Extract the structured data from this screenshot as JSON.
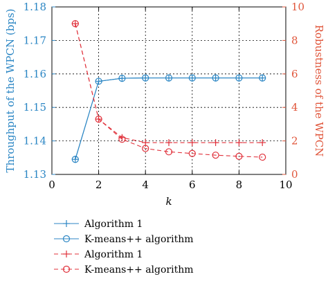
{
  "chart_data": {
    "type": "line",
    "xlabel": "k",
    "xlim": [
      0,
      10
    ],
    "xticks": [
      0,
      2,
      4,
      6,
      8,
      10
    ],
    "grid": true,
    "left_axis": {
      "ylabel": "Throughput of the WPCN (bps)",
      "ylim": [
        1.13,
        1.18
      ],
      "yticks": [
        1.13,
        1.14,
        1.15,
        1.16,
        1.17,
        1.18
      ],
      "color": "#2b86c4"
    },
    "right_axis": {
      "ylabel": "Robustness of the WPCN",
      "ylim": [
        0,
        10
      ],
      "yticks": [
        0,
        2,
        4,
        6,
        8,
        10
      ],
      "color": "#e0553a"
    },
    "x": [
      1,
      2,
      3,
      4,
      5,
      6,
      7,
      8,
      9
    ],
    "series": [
      {
        "name": "Algorithm 1",
        "axis": "left",
        "marker": "plus",
        "line": "solid",
        "color": "#2b86c4",
        "values": [
          1.1345,
          1.1578,
          1.1587,
          1.1588,
          1.1588,
          1.1588,
          1.1588,
          1.1588,
          1.1588
        ]
      },
      {
        "name": "K-means++ algorithm",
        "axis": "left",
        "marker": "circle",
        "line": "solid",
        "color": "#2b86c4",
        "values": [
          1.1345,
          1.1578,
          1.1587,
          1.1588,
          1.1588,
          1.1588,
          1.1588,
          1.1588,
          1.1588
        ]
      },
      {
        "name": "Algorithm 1",
        "axis": "right",
        "marker": "plus",
        "line": "dashed",
        "color": "#e0303a",
        "values": [
          9.0,
          3.3,
          2.2,
          1.9,
          1.9,
          1.9,
          1.9,
          1.9,
          1.9
        ]
      },
      {
        "name": "K-means++ algorithm",
        "axis": "right",
        "marker": "circle",
        "line": "dashed",
        "color": "#e0303a",
        "values": [
          9.0,
          3.3,
          2.1,
          1.55,
          1.35,
          1.25,
          1.15,
          1.08,
          1.03
        ]
      }
    ],
    "legend_placement": "bottom"
  }
}
